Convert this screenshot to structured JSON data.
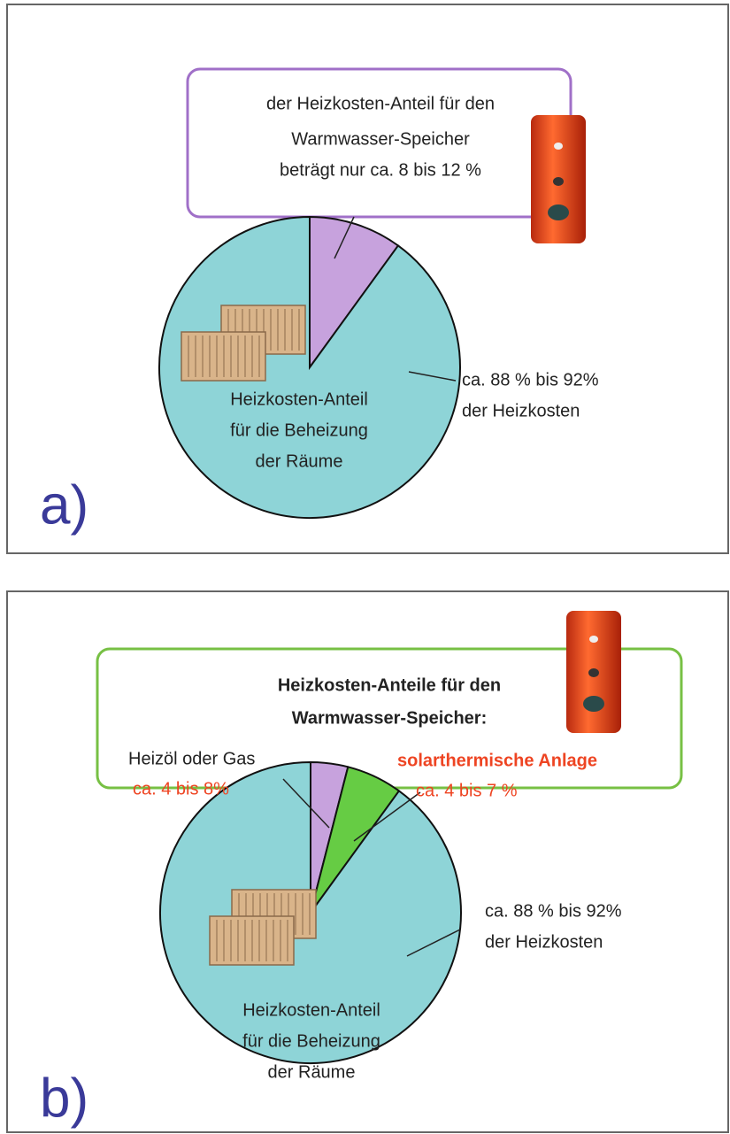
{
  "chart_data": [
    {
      "type": "pie",
      "panel_label": "a)",
      "values": [
        10,
        90
      ],
      "colors": [
        "#c7a2dd",
        "#8ed4d7"
      ],
      "callout": [
        "der Heizkosten-Anteil für den",
        "Warmwasser-Speicher",
        "beträgt nur ca. 8 bis 12 %"
      ],
      "inner_label": [
        "Heizkosten-Anteil",
        "für die Beheizung",
        "der Räume"
      ],
      "outer_label": [
        "ca. 88 % bis 92%",
        "der Heizkosten"
      ]
    },
    {
      "type": "pie",
      "panel_label": "b)",
      "values": [
        4,
        6,
        90
      ],
      "colors": [
        "#c7a2dd",
        "#66cc44",
        "#8ed4d7"
      ],
      "callout": [
        "Heizkosten-Anteile für den",
        "Warmwasser-Speicher:"
      ],
      "annotations": [
        {
          "name": "Heizöl oder Gas",
          "range": "ca. 4 bis 8%"
        },
        {
          "name": "solarthermische Anlage",
          "range": "ca. 4 bis 7 %"
        }
      ],
      "inner_label": [
        "Heizkosten-Anteil",
        "für die Beheizung",
        "der Räume"
      ],
      "outer_label": [
        "ca. 88 % bis 92%",
        "der Heizkosten"
      ]
    }
  ]
}
